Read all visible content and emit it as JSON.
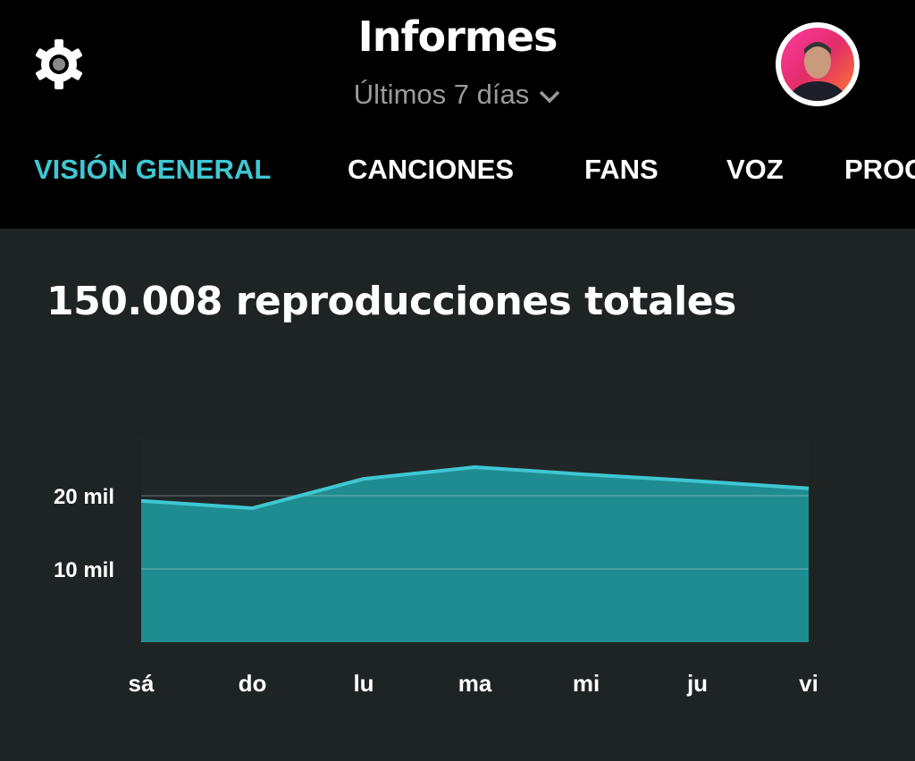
{
  "header": {
    "title": "Informes",
    "range_label": "Últimos 7 días",
    "settings_icon": "gear-icon",
    "avatar_icon": "user-avatar"
  },
  "tabs": [
    {
      "label": "VISIÓN GENERAL",
      "active": true
    },
    {
      "label": "CANCIONES",
      "active": false
    },
    {
      "label": "FANS",
      "active": false
    },
    {
      "label": "VOZ",
      "active": false
    },
    {
      "label": "PROG",
      "active": false
    }
  ],
  "summary": {
    "total_text": "150.008 reproducciones totales"
  },
  "colors": {
    "accent": "#3fc7d2",
    "fill": "#1f8c91",
    "background": "#1e2324"
  },
  "chart_data": {
    "type": "area",
    "title": "150.008 reproducciones totales",
    "categories": [
      "sá",
      "do",
      "lu",
      "ma",
      "mi",
      "ju",
      "vi"
    ],
    "values": [
      19300,
      18300,
      22300,
      23900,
      22900,
      22000,
      21000
    ],
    "yticks": [
      {
        "value": 10000,
        "label": "10 mil"
      },
      {
        "value": 20000,
        "label": "20 mil"
      }
    ],
    "ylim": [
      0,
      28000
    ],
    "xlabel": "",
    "ylabel": "",
    "grid": true
  }
}
